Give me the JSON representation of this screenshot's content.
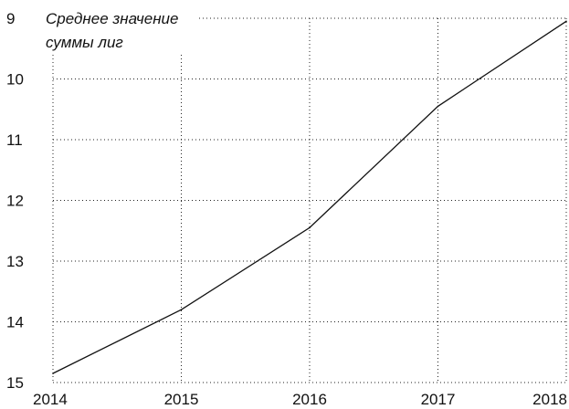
{
  "chart_data": {
    "type": "line",
    "title_lines": [
      "Среднее значение",
      "суммы лиг"
    ],
    "xlabel": "",
    "ylabel": "",
    "x": [
      2014,
      2015,
      2016,
      2017,
      2018
    ],
    "x_ticks": [
      "2014",
      "2015",
      "2016",
      "2017",
      "2018"
    ],
    "y_ticks": [
      "9",
      "10",
      "11",
      "12",
      "13",
      "14",
      "15"
    ],
    "ylim": [
      9,
      15
    ],
    "y_inverted": true,
    "grid": true,
    "series": [
      {
        "values": [
          14.85,
          13.8,
          12.45,
          10.45,
          9.05
        ]
      }
    ]
  }
}
